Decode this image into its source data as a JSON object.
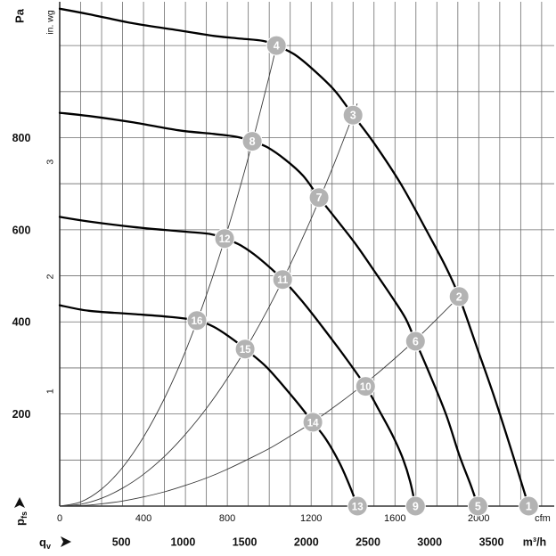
{
  "chart_data": {
    "type": "line",
    "x_axis": {
      "unit": "cfm",
      "range": [
        0,
        2360
      ],
      "ticks": [
        0,
        400,
        800,
        1200,
        1600,
        2000
      ]
    },
    "y_axis": {
      "unit": "Pa",
      "range": [
        0,
        1095
      ],
      "ticks": [
        200,
        400,
        600,
        800
      ]
    },
    "y_axis_secondary": {
      "unit": "in. wg",
      "ticks": [
        1,
        2,
        3
      ]
    },
    "x_axis_secondary": {
      "unit": "m³/h",
      "ticks": [
        500,
        1000,
        1500,
        2000,
        2500,
        3000,
        3500
      ]
    },
    "y_symbol": {
      "main": "p",
      "sub": "fs"
    },
    "x_symbol": {
      "main": "q",
      "sub": "v"
    },
    "grid": {
      "show": true,
      "x_step": 100,
      "y_step": 100
    },
    "fan_curves": [
      {
        "x": [
          0,
          140,
          353,
          566,
          736,
          864,
          970,
          1034,
          1119,
          1204,
          1311,
          1400,
          1502,
          1630,
          1757,
          1843,
          1906,
          1991,
          2077,
          2162,
          2238
        ],
        "y": [
          1080,
          1068,
          1048,
          1033,
          1021,
          1015,
          1010,
          1000,
          981,
          950,
          903,
          849,
          787,
          698,
          593,
          519,
          455,
          345,
          233,
          112,
          0
        ]
      },
      {
        "x": [
          0,
          140,
          353,
          566,
          736,
          843,
          919,
          991,
          1077,
          1162,
          1238,
          1332,
          1417,
          1502,
          1587,
          1651,
          1698,
          1757,
          1843,
          1906,
          1962,
          1996
        ],
        "y": [
          854,
          847,
          833,
          816,
          808,
          802,
          792,
          779,
          752,
          717,
          670,
          616,
          566,
          510,
          453,
          407,
          358,
          296,
          200,
          112,
          45,
          0
        ]
      },
      {
        "x": [
          0,
          140,
          353,
          566,
          715,
          787,
          864,
          949,
          1064,
          1162,
          1247,
          1353,
          1460,
          1523,
          1587,
          1638,
          1672,
          1698
        ],
        "y": [
          628,
          618,
          606,
          597,
          591,
          581,
          566,
          539,
          492,
          442,
          393,
          329,
          260,
          209,
          155,
          103,
          54,
          0
        ]
      },
      {
        "x": [
          0,
          140,
          353,
          523,
          655,
          736,
          821,
          885,
          991,
          1119,
          1208,
          1268,
          1332,
          1383,
          1421
        ],
        "y": [
          436,
          424,
          417,
          411,
          403,
          389,
          364,
          341,
          300,
          233,
          182,
          147,
          97,
          45,
          0
        ]
      }
    ],
    "system_curves": [
      {
        "x": [
          0,
          100,
          200,
          300,
          400,
          500,
          600,
          700,
          800,
          900,
          1000,
          1040
        ],
        "y": [
          0,
          9,
          37,
          84,
          150,
          234,
          336,
          458,
          598,
          757,
          934,
          1011
        ]
      },
      {
        "x": [
          0,
          100,
          200,
          300,
          400,
          500,
          600,
          700,
          800,
          900,
          1000,
          1100,
          1200,
          1300,
          1400,
          1420
        ],
        "y": [
          0,
          4,
          17,
          39,
          69,
          108,
          156,
          212,
          277,
          351,
          433,
          524,
          624,
          732,
          849,
          874
        ]
      },
      {
        "x": [
          0,
          100,
          200,
          300,
          400,
          500,
          600,
          700,
          800,
          900,
          1000,
          1100,
          1200,
          1300,
          1400,
          1500,
          1600,
          1700,
          1800,
          1900,
          1930
        ],
        "y": [
          0,
          1,
          5,
          11,
          20,
          31,
          45,
          61,
          80,
          102,
          125,
          152,
          180,
          212,
          246,
          282,
          321,
          362,
          406,
          452,
          467
        ]
      }
    ],
    "points": [
      {
        "label": "1",
        "x": 2238,
        "y": 0
      },
      {
        "label": "2",
        "x": 1906,
        "y": 455
      },
      {
        "label": "3",
        "x": 1400,
        "y": 849
      },
      {
        "label": "4",
        "x": 1034,
        "y": 1000
      },
      {
        "label": "5",
        "x": 1996,
        "y": 0
      },
      {
        "label": "6",
        "x": 1698,
        "y": 358
      },
      {
        "label": "7",
        "x": 1238,
        "y": 670
      },
      {
        "label": "8",
        "x": 919,
        "y": 792
      },
      {
        "label": "9",
        "x": 1698,
        "y": 0
      },
      {
        "label": "10",
        "x": 1460,
        "y": 260
      },
      {
        "label": "11",
        "x": 1064,
        "y": 492
      },
      {
        "label": "12",
        "x": 787,
        "y": 581
      },
      {
        "label": "13",
        "x": 1421,
        "y": 0
      },
      {
        "label": "14",
        "x": 1208,
        "y": 182
      },
      {
        "label": "15",
        "x": 885,
        "y": 341
      },
      {
        "label": "16",
        "x": 655,
        "y": 403
      }
    ]
  },
  "icons": {
    "pressure_arrow": "arrow-up-icon",
    "flow_arrow": "arrow-right-icon"
  },
  "colors": {
    "grid": "#6e6e6e",
    "axis": "#333333",
    "fan_curve": "#000000",
    "system_curve": "#3a3a3a",
    "marker_fill": "#b3b3b3",
    "marker_stroke": "#ffffff",
    "marker_text": "#ffffff",
    "text": "#111111"
  }
}
